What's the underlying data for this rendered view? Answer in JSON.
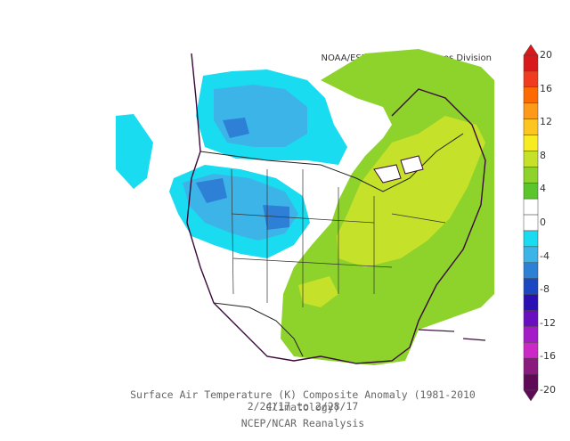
{
  "credit": "NOAA/ESRL Physical Sciences Division",
  "caption": {
    "line1": "Surface Air Temperature (K) Composite Anomaly (1981-2010 Climatology)",
    "line2": "2/24/17  to 2/28/17",
    "line3": "NCEP/NCAR Reanalysis"
  },
  "colorbar": {
    "tick_labels": [
      "20",
      "16",
      "12",
      "8",
      "4",
      "0",
      "-4",
      "-8",
      "-12",
      "-16",
      "-20"
    ],
    "colors": [
      "#d7191c",
      "#f03b20",
      "#fd6a02",
      "#fd9a1a",
      "#fcc520",
      "#f6ec21",
      "#c6e12a",
      "#8ed22c",
      "#5ac62b",
      "#ffffff",
      "#ffffff",
      "#19dcf0",
      "#3cb4e8",
      "#2e7fd6",
      "#1c47c2",
      "#2a10b4",
      "#6a0fc0",
      "#a41bc8",
      "#cc28c7",
      "#8a1a7e",
      "#5e0a57"
    ]
  }
}
